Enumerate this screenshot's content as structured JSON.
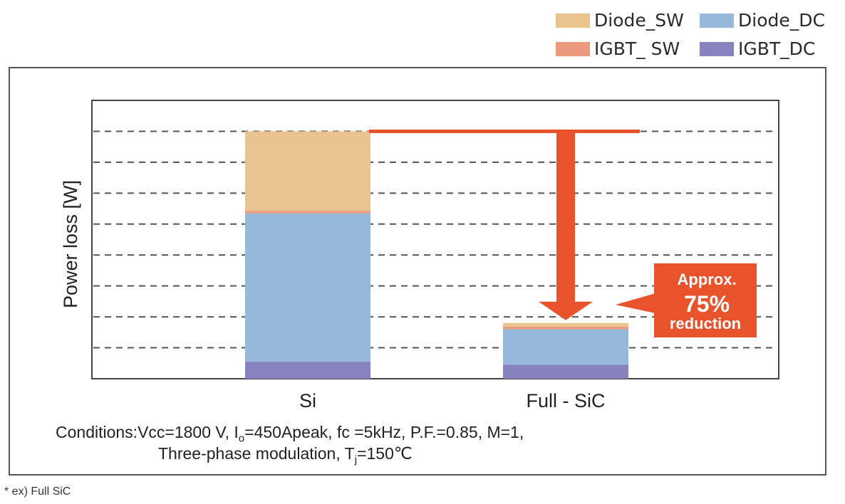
{
  "legend": [
    {
      "label": "Diode_SW",
      "color": "#eac48f"
    },
    {
      "label": "Diode_DC",
      "color": "#94b7da"
    },
    {
      "label": "IGBT_ SW",
      "color": "#eb9a7d"
    },
    {
      "label": "IGBT_DC",
      "color": "#8783bf"
    }
  ],
  "chart_data": {
    "type": "bar",
    "stacked": true,
    "categories": [
      "Si",
      "Full - SiC"
    ],
    "ylabel": "Power loss [W]",
    "xlabel": "",
    "ylim": [
      0,
      9
    ],
    "grid": "dashed horizontal",
    "series": [
      {
        "name": "IGBT_DC",
        "color": "#8783bf",
        "values": [
          0.55,
          0.45
        ]
      },
      {
        "name": "Diode_DC",
        "color": "#94b7da",
        "values": [
          4.8,
          1.15
        ]
      },
      {
        "name": "IGBT_ SW",
        "color": "#eb9a7d",
        "values": [
          0.08,
          0.08
        ]
      },
      {
        "name": "Diode_SW",
        "color": "#eac48f",
        "values": [
          2.57,
          0.12
        ]
      }
    ],
    "annotation": {
      "line1": "Approx.",
      "line2": "75%",
      "line3": "reduction",
      "color": "#e8532c"
    }
  },
  "conditions": {
    "line1_pre": "Conditions:Vcc=1800 V, I",
    "line1_sub": "o",
    "line1_post": "=450Apeak, fc =5kHz, P.F.=0.85, M=1,",
    "line2_pre": "Three-phase modulation, T",
    "line2_sub": "j",
    "line2_post": "=150℃"
  },
  "footnote": "* ex) Full SiC"
}
